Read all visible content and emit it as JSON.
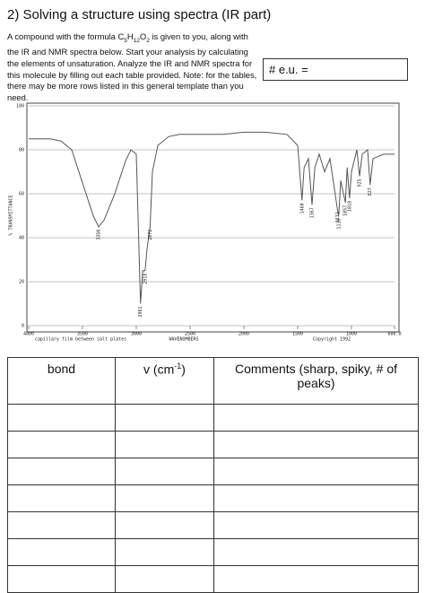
{
  "title": "2) Solving a structure using spectra (IR part)",
  "intro": [
    "A compound with the formula C",
    "5",
    "H",
    "12",
    "O",
    "2",
    " is given to you, along with the IR and NMR spectra below. Start your analysis by calculating the elements of unsaturation. Analyze the IR and NMR spectra for this molecule by filling out each table provided. Note: for the tables, there may be more rows listed in this general template than you need."
  ],
  "eu_label": "# e.u. =",
  "chart_data": {
    "type": "line",
    "color": "#555555",
    "y_label": "% TRANSMITTANCE",
    "footer": [
      "capillary film between salt plates",
      "WAVENUMBERS",
      "Copyright 1992"
    ],
    "x": [
      4000,
      3800,
      3700,
      3600,
      3500,
      3400,
      3350,
      3300,
      3200,
      3100,
      3050,
      3000,
      2961,
      2940,
      2918,
      2900,
      2872,
      2850,
      2800,
      2700,
      2600,
      2400,
      2200,
      2000,
      1800,
      1600,
      1500,
      1460,
      1440,
      1400,
      1367,
      1340,
      1300,
      1250,
      1200,
      1131,
      1118,
      1100,
      1057,
      1040,
      1018,
      1000,
      950,
      925,
      900,
      850,
      827,
      800,
      700,
      600
    ],
    "values": [
      85,
      85,
      84,
      80,
      65,
      50,
      45,
      48,
      60,
      75,
      80,
      78,
      10,
      25,
      25,
      35,
      45,
      70,
      82,
      86,
      87,
      87,
      87,
      88,
      88,
      87,
      82,
      57,
      72,
      76,
      55,
      72,
      78,
      70,
      76,
      53,
      50,
      66,
      56,
      72,
      58,
      70,
      80,
      68,
      78,
      80,
      64,
      76,
      78,
      78
    ],
    "peaks": [
      3350,
      2961,
      2918,
      2872,
      1460,
      1367,
      1131,
      1118,
      1057,
      1018,
      925,
      827
    ],
    "xlim": [
      4000,
      600
    ],
    "ylim": [
      0,
      100
    ],
    "xticks": [
      4000,
      3500,
      3000,
      2500,
      2000,
      1500,
      1000,
      {
        "value": 600,
        "label": "600.0"
      }
    ],
    "yticks": [
      0,
      20,
      40,
      60,
      80,
      100
    ],
    "grid": true
  },
  "table": {
    "header": [
      "bond",
      "v (cm",
      "-1",
      ")",
      "Comments (sharp, spiky, # of peaks)"
    ]
  }
}
